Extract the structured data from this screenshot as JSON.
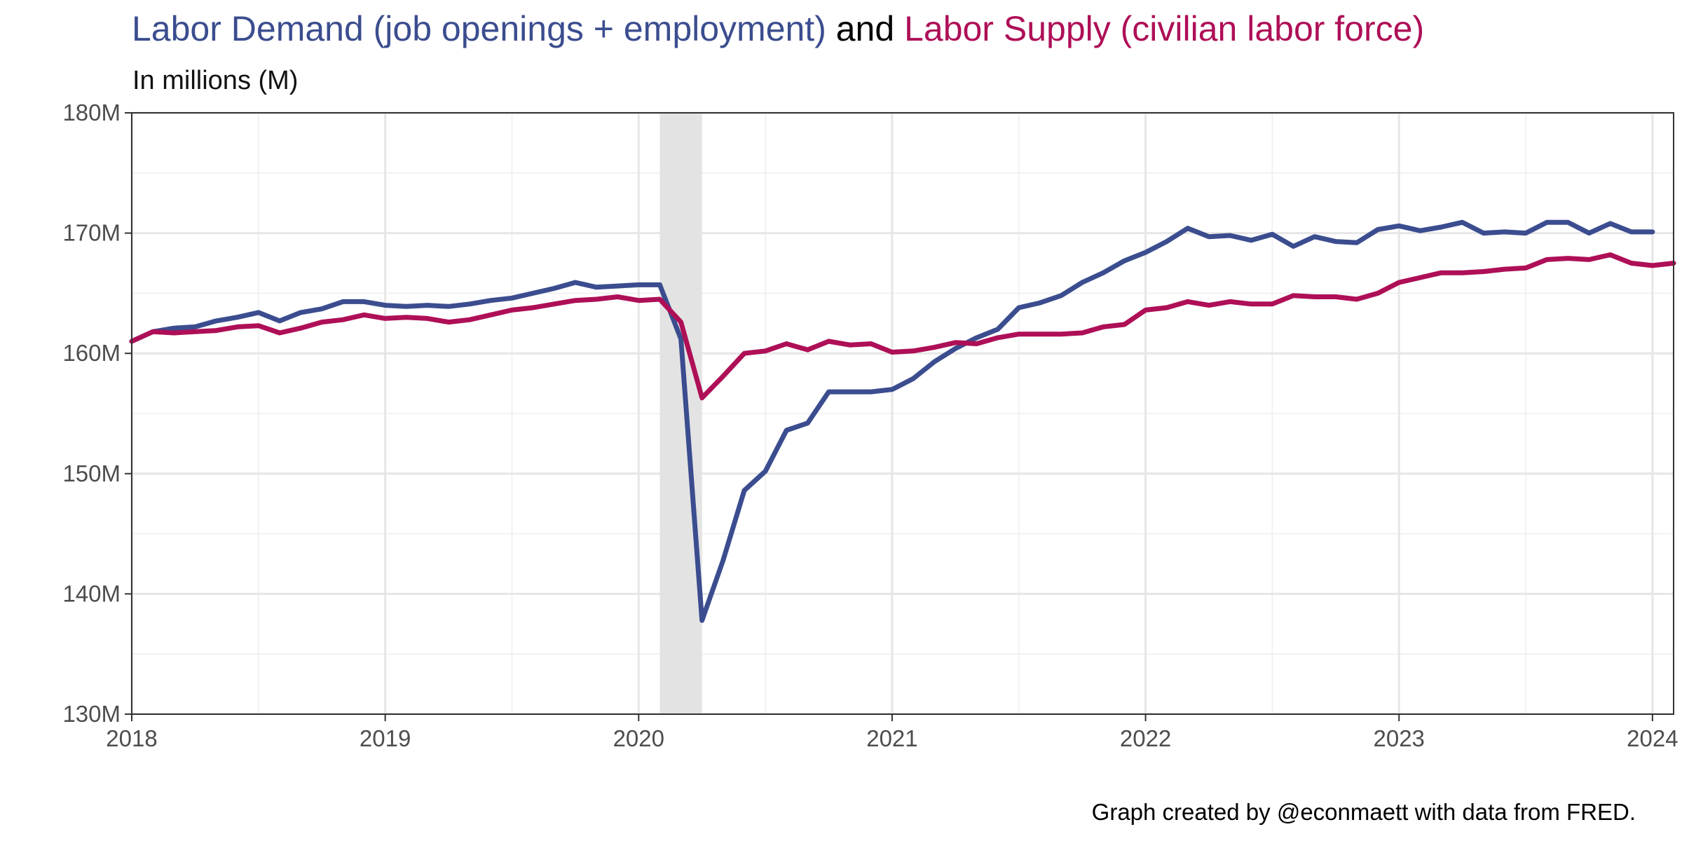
{
  "chart_data": {
    "type": "line",
    "title_parts": [
      {
        "text": "Labor Demand (job openings + employment)",
        "color": "#3B4D8F"
      },
      {
        "text": " and ",
        "color": "#000000"
      },
      {
        "text": "Labor Supply (civilian labor force)",
        "color": "#AE0F57"
      }
    ],
    "subtitle": "In millions (M)",
    "caption": "Graph created by @econmaett with data from FRED.",
    "xlim": [
      "2018-01",
      "2024-02"
    ],
    "ylim": [
      130,
      180
    ],
    "x_ticks": [
      "2018",
      "2019",
      "2020",
      "2021",
      "2022",
      "2023",
      "2024"
    ],
    "y_ticks": [
      "130M",
      "140M",
      "150M",
      "160M",
      "170M",
      "180M"
    ],
    "y_tick_values": [
      130,
      140,
      150,
      160,
      170,
      180
    ],
    "recession_shading": {
      "start": "2020-02",
      "end": "2020-04",
      "color": "#e3e3e3"
    },
    "grid": true,
    "legend": "none",
    "x": [
      "2018-01",
      "2018-02",
      "2018-03",
      "2018-04",
      "2018-05",
      "2018-06",
      "2018-07",
      "2018-08",
      "2018-09",
      "2018-10",
      "2018-11",
      "2018-12",
      "2019-01",
      "2019-02",
      "2019-03",
      "2019-04",
      "2019-05",
      "2019-06",
      "2019-07",
      "2019-08",
      "2019-09",
      "2019-10",
      "2019-11",
      "2019-12",
      "2020-01",
      "2020-02",
      "2020-03",
      "2020-04",
      "2020-05",
      "2020-06",
      "2020-07",
      "2020-08",
      "2020-09",
      "2020-10",
      "2020-11",
      "2020-12",
      "2021-01",
      "2021-02",
      "2021-03",
      "2021-04",
      "2021-05",
      "2021-06",
      "2021-07",
      "2021-08",
      "2021-09",
      "2021-10",
      "2021-11",
      "2021-12",
      "2022-01",
      "2022-02",
      "2022-03",
      "2022-04",
      "2022-05",
      "2022-06",
      "2022-07",
      "2022-08",
      "2022-09",
      "2022-10",
      "2022-11",
      "2022-12",
      "2023-01",
      "2023-02",
      "2023-03",
      "2023-04",
      "2023-05",
      "2023-06",
      "2023-07",
      "2023-08",
      "2023-09",
      "2023-10",
      "2023-11",
      "2023-12",
      "2024-01",
      "2024-02"
    ],
    "series": [
      {
        "color": "#3B4D8F",
        "values": [
          161.0,
          161.8,
          162.1,
          162.2,
          162.7,
          163.0,
          163.4,
          162.7,
          163.4,
          163.7,
          164.3,
          164.3,
          164.0,
          163.9,
          164.0,
          163.9,
          164.1,
          164.4,
          164.6,
          165.0,
          165.4,
          165.9,
          165.5,
          165.6,
          165.7,
          165.7,
          161.2,
          137.8,
          142.8,
          148.6,
          150.2,
          153.6,
          154.2,
          156.8,
          156.8,
          156.8,
          157.0,
          157.9,
          159.3,
          160.4,
          161.3,
          162.0,
          163.8,
          164.2,
          164.8,
          165.9,
          166.7,
          167.7,
          168.4,
          169.3,
          170.4,
          169.7,
          169.8,
          169.4,
          169.9,
          168.9,
          169.7,
          169.3,
          169.2,
          170.3,
          170.6,
          170.2,
          170.5,
          170.9,
          170.0,
          170.1,
          170.0,
          170.9,
          170.9,
          170.0,
          170.8,
          170.1,
          170.1,
          null
        ]
      },
      {
        "color": "#AE0F57",
        "values": [
          161.0,
          161.8,
          161.7,
          161.8,
          161.9,
          162.2,
          162.3,
          161.7,
          162.1,
          162.6,
          162.8,
          163.2,
          162.9,
          163.0,
          162.9,
          162.6,
          162.8,
          163.2,
          163.6,
          163.8,
          164.1,
          164.4,
          164.5,
          164.7,
          164.4,
          164.5,
          162.6,
          156.3,
          158.1,
          160.0,
          160.2,
          160.8,
          160.3,
          161.0,
          160.7,
          160.8,
          160.1,
          160.2,
          160.5,
          160.9,
          160.8,
          161.3,
          161.6,
          161.6,
          161.6,
          161.7,
          162.2,
          162.4,
          163.6,
          163.8,
          164.3,
          164.0,
          164.3,
          164.1,
          164.1,
          164.8,
          164.7,
          164.7,
          164.5,
          165.0,
          165.9,
          166.3,
          166.7,
          166.7,
          166.8,
          167.0,
          167.1,
          167.8,
          167.9,
          167.8,
          168.2,
          167.5,
          167.3,
          167.5
        ]
      }
    ]
  }
}
